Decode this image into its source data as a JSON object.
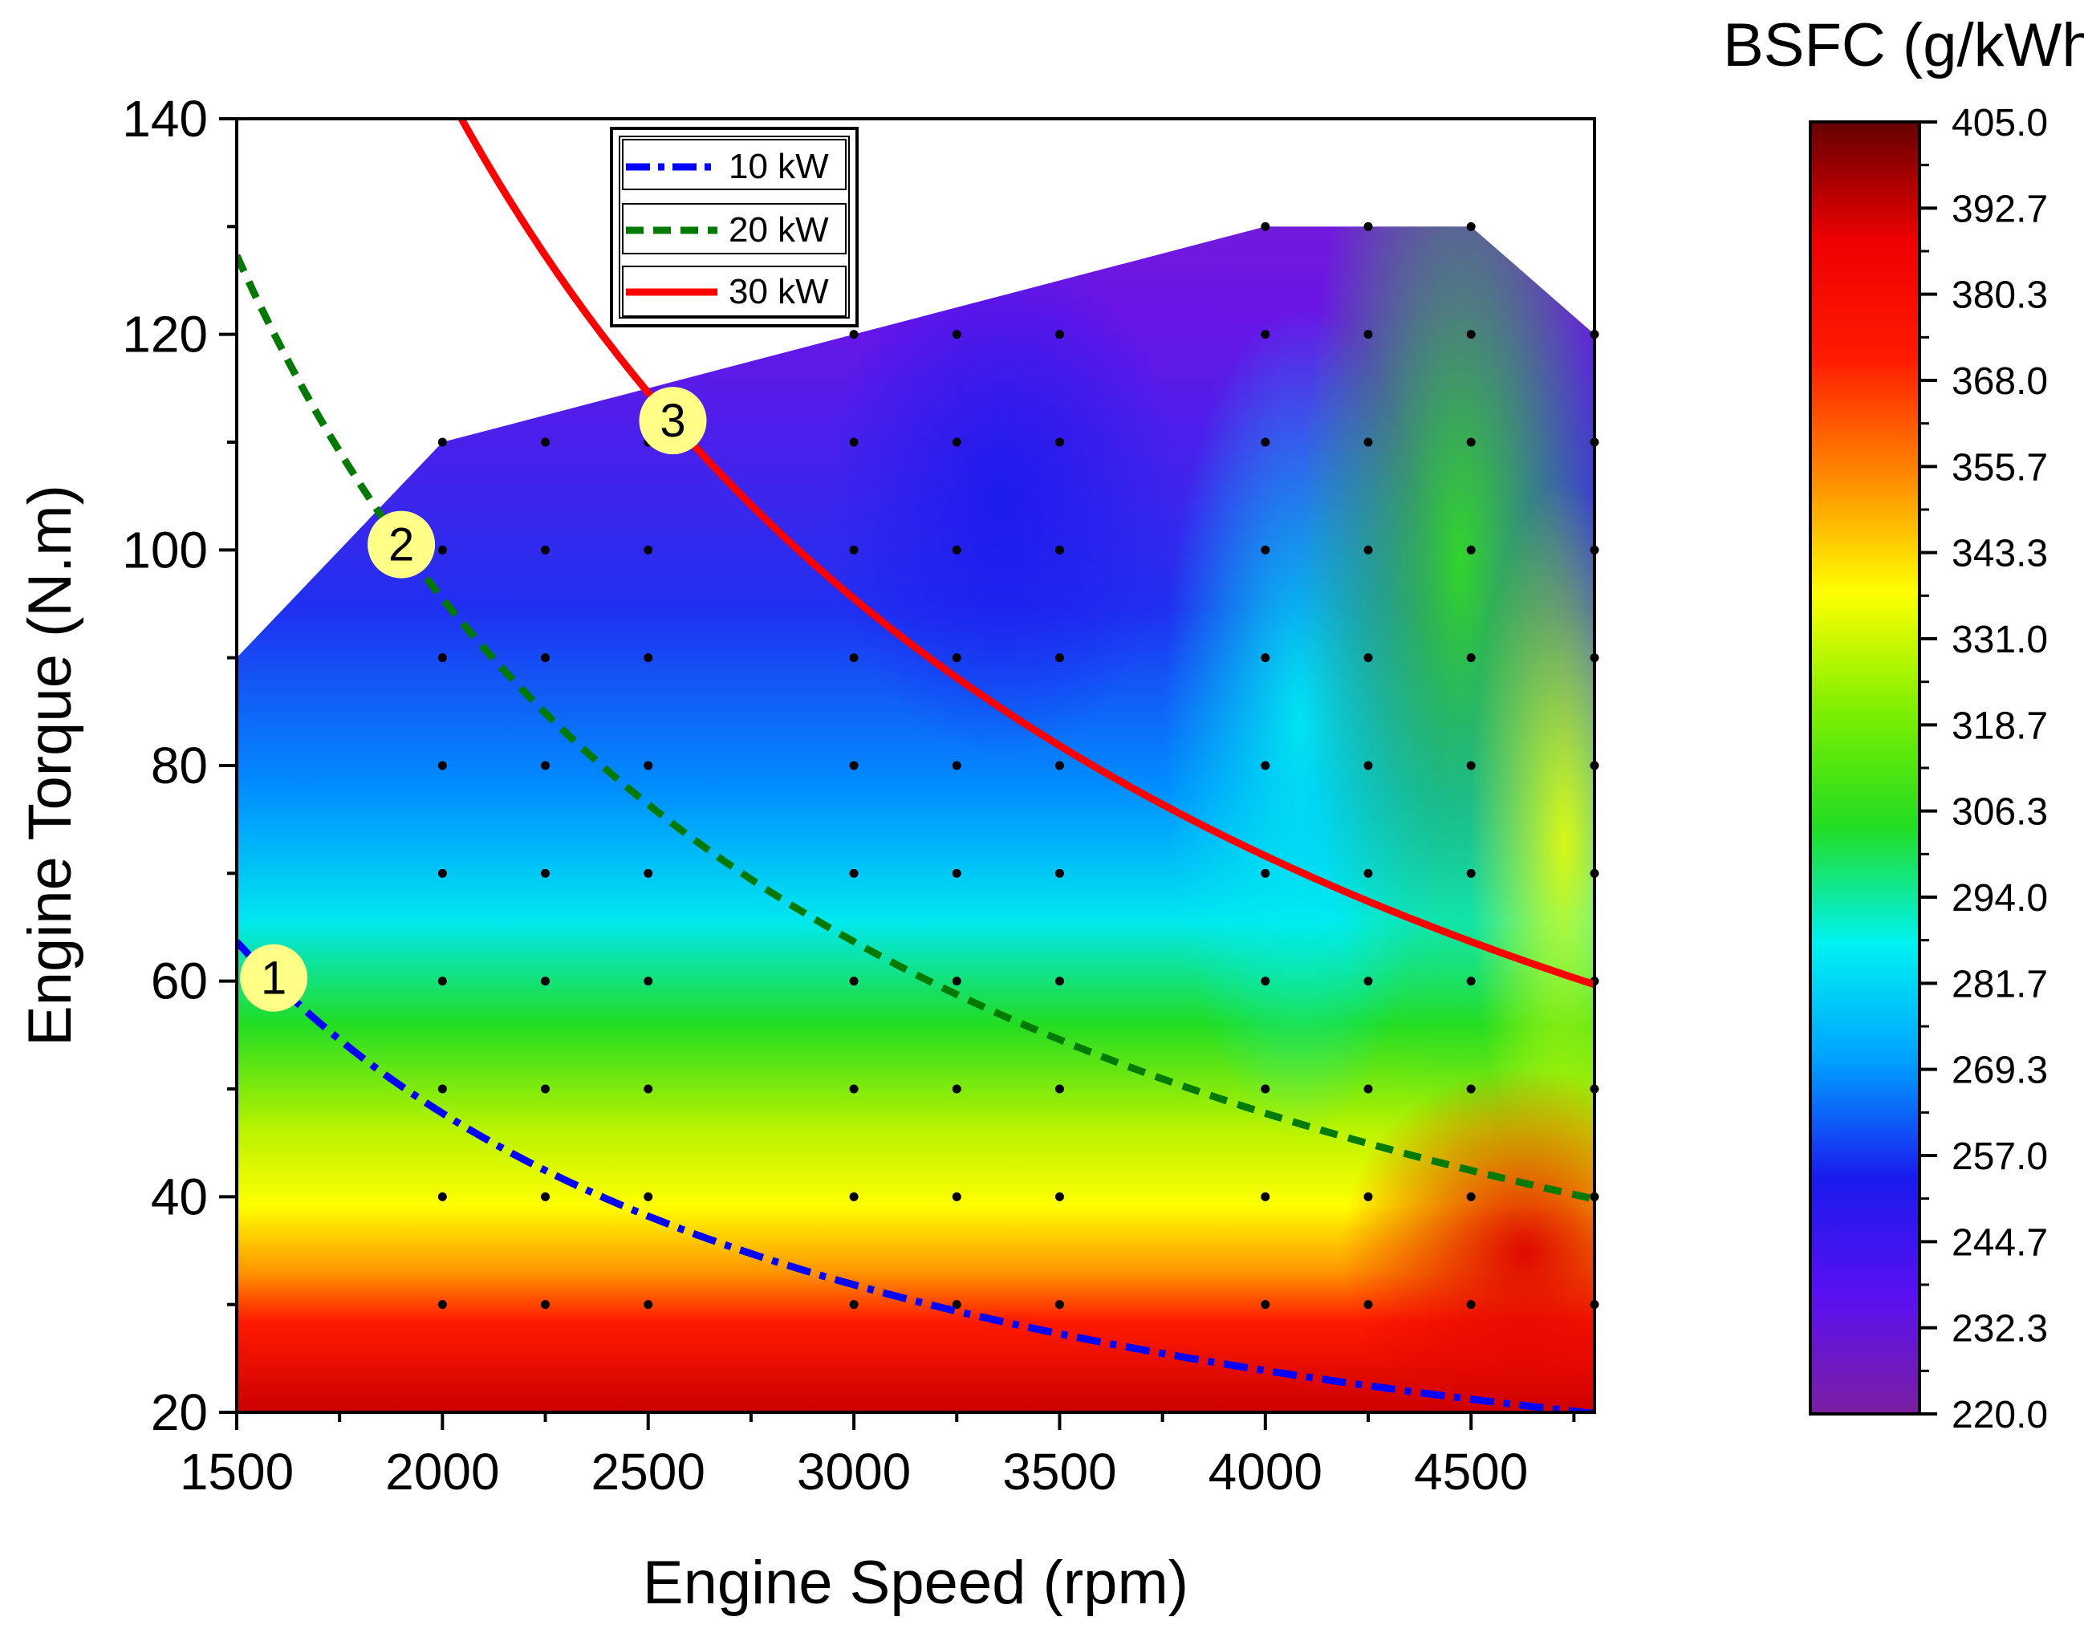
{
  "chart_data": {
    "type": "heatmap",
    "xlabel": "Engine Speed (rpm)",
    "ylabel": "Engine Torque (N.m)",
    "colorbar_title": "BSFC (g/kWh)",
    "xlim": [
      1500,
      4800
    ],
    "ylim": [
      20,
      140
    ],
    "x_ticks": [
      1500,
      2000,
      2500,
      3000,
      3500,
      4000,
      4500
    ],
    "y_ticks": [
      20,
      40,
      60,
      80,
      100,
      120,
      140
    ],
    "colorbar_ticks": [
      "405.0",
      "392.7",
      "380.3",
      "368.0",
      "355.7",
      "343.3",
      "331.0",
      "318.7",
      "306.3",
      "294.0",
      "281.7",
      "269.3",
      "257.0",
      "244.7",
      "232.3",
      "220.0"
    ],
    "colorbar_range": [
      220.0,
      405.0
    ],
    "colorbar_stops": [
      "#7b1fa2",
      "#5a10f0",
      "#1a1aee",
      "#00a0ff",
      "#00f2f2",
      "#22dd22",
      "#7fef00",
      "#ffff00",
      "#ff8800",
      "#ff1a00",
      "#ee0000",
      "#660000"
    ],
    "legend": {
      "placement": "top-center",
      "entries": [
        {
          "label": "10 kW",
          "color": "#0000ff",
          "style": "dash-dot"
        },
        {
          "label": "20 kW",
          "color": "#007a00",
          "style": "dashed"
        },
        {
          "label": "30 kW",
          "color": "#ff0000",
          "style": "solid"
        }
      ]
    },
    "series": [
      {
        "name": "10 kW",
        "power_kw": 10,
        "color": "#0000ff",
        "style": "dash-dot"
      },
      {
        "name": "20 kW",
        "power_kw": 20,
        "color": "#007a00",
        "style": "dashed"
      },
      {
        "name": "30 kW",
        "power_kw": 30,
        "color": "#ff0000",
        "style": "solid"
      }
    ],
    "operating_points": [
      {
        "label": "1",
        "x": 1590,
        "y": 60.3
      },
      {
        "label": "2",
        "x": 1900,
        "y": 100.5
      },
      {
        "label": "3",
        "x": 2560,
        "y": 112
      }
    ],
    "measurement_speeds": [
      2000,
      2250,
      2500,
      3000,
      3250,
      3500,
      4000,
      4250,
      4500,
      4800
    ],
    "measurement_torques": [
      30,
      40,
      50,
      60,
      70,
      80,
      90,
      100,
      110,
      120,
      130
    ],
    "max_torque_envelope": [
      {
        "x": 1500,
        "y": 90
      },
      {
        "x": 2000,
        "y": 110
      },
      {
        "x": 3000,
        "y": 120
      },
      {
        "x": 4000,
        "y": 130
      },
      {
        "x": 4500,
        "y": 130
      },
      {
        "x": 4800,
        "y": 120
      }
    ],
    "grid": false
  }
}
